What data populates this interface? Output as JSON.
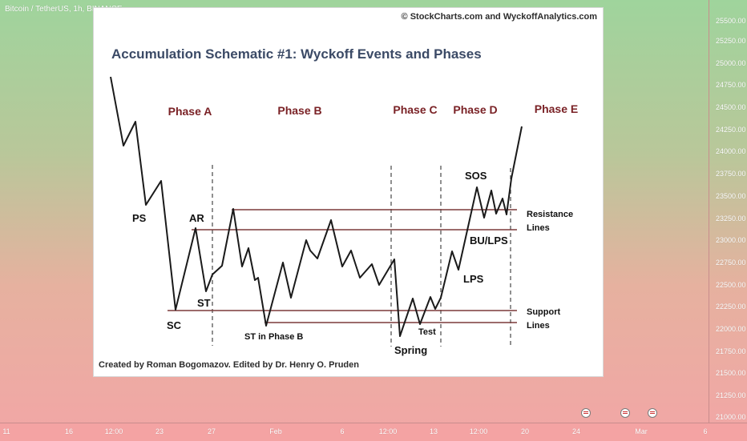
{
  "tradingview": {
    "header": "Bitcoin / TetherUS, 1h, BINANCE",
    "price_labels": [
      "25500.00",
      "25250.00",
      "25000.00",
      "24750.00",
      "24500.00",
      "24250.00",
      "24000.00",
      "23750.00",
      "23500.00",
      "23250.00",
      "23000.00",
      "22750.00",
      "22500.00",
      "22250.00",
      "22000.00",
      "21750.00",
      "21500.00",
      "21250.00",
      "21000.00"
    ],
    "time_labels": [
      "11",
      "16",
      "12:00",
      "23",
      "27",
      "Feb",
      "6",
      "12:00",
      "13",
      "12:00",
      "20",
      "24",
      "Mar",
      "6"
    ],
    "flags": [
      "us-flag-icon",
      "us-flag-icon",
      "us-flag-icon"
    ]
  },
  "schematic": {
    "title": "Accumulation Schematic #1: Wyckoff Events and Phases",
    "credit_top": "© StockCharts.com and WyckoffAnalytics.com",
    "credit_bottom": "Created by Roman Bogomazov. Edited by Dr. Henry O. Pruden",
    "phases": [
      "Phase A",
      "Phase B",
      "Phase C",
      "Phase D",
      "Phase E"
    ],
    "events": {
      "ps": "PS",
      "sc": "SC",
      "ar": "AR",
      "st": "ST",
      "st_phase_b": "ST in Phase B",
      "spring": "Spring",
      "test": "Test",
      "lps": "LPS",
      "bu_lps": "BU/LPS",
      "sos": "SOS"
    },
    "levels": {
      "resistance_1": "Resistance",
      "resistance_2": "Lines",
      "support_1": "Support",
      "support_2": "Lines"
    },
    "colors": {
      "price_line": "#1a1a1a",
      "level_line": "#7b3a3a",
      "phase_text": "#7a2226",
      "title_text": "#3b4a66"
    }
  }
}
